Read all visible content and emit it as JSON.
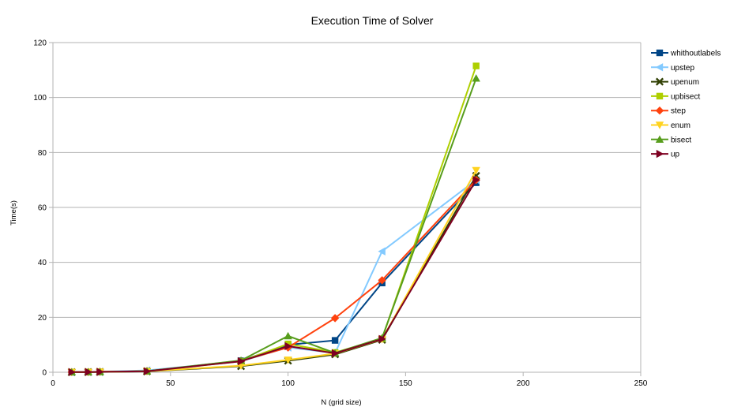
{
  "chart_data": {
    "type": "line",
    "title": "Execution Time of Solver",
    "xlabel": "N (grid size)",
    "ylabel": "Time(s)",
    "xlim": [
      0,
      250
    ],
    "ylim": [
      0,
      120
    ],
    "xticks": [
      0,
      50,
      100,
      150,
      200,
      250
    ],
    "yticks": [
      0,
      20,
      40,
      60,
      80,
      100,
      120
    ],
    "grid": "horizontal",
    "legend": "right",
    "x": [
      8,
      15,
      20,
      40,
      80,
      100,
      120,
      140,
      180
    ],
    "series": [
      {
        "name": "whithoutlabels",
        "color": "#004586",
        "marker": "square",
        "values": [
          0.05,
          0.1,
          0.15,
          0.4,
          4.2,
          10.0,
          11.6,
          32.5,
          69.0
        ]
      },
      {
        "name": "upstep",
        "color": "#83caff",
        "marker": "triangle-left",
        "values": [
          0.05,
          0.1,
          0.2,
          0.7,
          4.0,
          9.0,
          7.0,
          44.0,
          70.0
        ]
      },
      {
        "name": "upenum",
        "color": "#314004",
        "marker": "x",
        "values": [
          0.05,
          0.08,
          0.12,
          0.3,
          2.2,
          4.2,
          6.5,
          11.8,
          71.5
        ]
      },
      {
        "name": "upbisect",
        "color": "#aecf00",
        "marker": "square",
        "values": [
          0.05,
          0.1,
          0.15,
          0.4,
          4.0,
          10.3,
          7.2,
          12.2,
          111.5
        ]
      },
      {
        "name": "step",
        "color": "#ff420e",
        "marker": "diamond",
        "values": [
          0.05,
          0.1,
          0.2,
          0.4,
          4.1,
          9.0,
          19.7,
          33.5,
          70.0
        ]
      },
      {
        "name": "enum",
        "color": "#ffd320",
        "marker": "triangle-down",
        "values": [
          0.05,
          0.09,
          0.14,
          0.35,
          2.4,
          4.5,
          6.8,
          12.0,
          73.5
        ]
      },
      {
        "name": "bisect",
        "color": "#579d1c",
        "marker": "triangle-up",
        "values": [
          0.05,
          0.1,
          0.15,
          0.4,
          4.3,
          13.2,
          7.0,
          12.5,
          107.0
        ]
      },
      {
        "name": "up",
        "color": "#7e0021",
        "marker": "triangle-right",
        "values": [
          0.05,
          0.09,
          0.14,
          0.35,
          4.0,
          9.5,
          6.9,
          12.1,
          70.0
        ]
      }
    ]
  }
}
